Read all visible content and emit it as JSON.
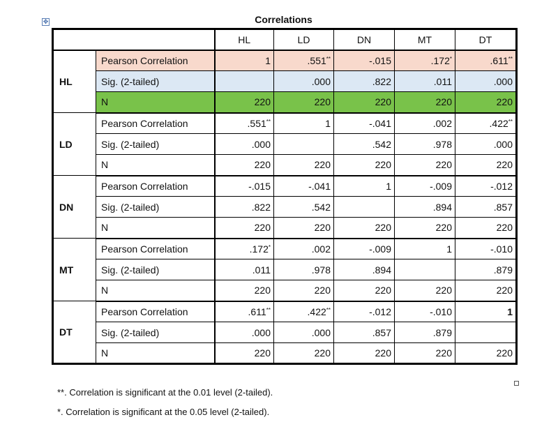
{
  "title": "Correlations",
  "move_handle_icon": "move-cross-icon",
  "columns": [
    "HL",
    "LD",
    "DN",
    "MT",
    "DT"
  ],
  "groups": [
    {
      "var": "HL",
      "rows": [
        {
          "stat": "Pearson Correlation",
          "cells": [
            {
              "v": "1"
            },
            {
              "v": ".551",
              "sup": "**"
            },
            {
              "v": "-.015"
            },
            {
              "v": ".172",
              "sup": "*"
            },
            {
              "v": ".611",
              "sup": "**"
            }
          ]
        },
        {
          "stat": "Sig. (2-tailed)",
          "cells": [
            {
              "v": ""
            },
            {
              "v": ".000"
            },
            {
              "v": ".822"
            },
            {
              "v": ".011"
            },
            {
              "v": ".000"
            }
          ]
        },
        {
          "stat": "N",
          "cells": [
            {
              "v": "220"
            },
            {
              "v": "220"
            },
            {
              "v": "220"
            },
            {
              "v": "220"
            },
            {
              "v": "220"
            }
          ]
        }
      ]
    },
    {
      "var": "LD",
      "rows": [
        {
          "stat": "Pearson Correlation",
          "cells": [
            {
              "v": ".551",
              "sup": "**"
            },
            {
              "v": "1"
            },
            {
              "v": "-.041"
            },
            {
              "v": ".002"
            },
            {
              "v": ".422",
              "sup": "**"
            }
          ]
        },
        {
          "stat": "Sig. (2-tailed)",
          "cells": [
            {
              "v": ".000"
            },
            {
              "v": ""
            },
            {
              "v": ".542"
            },
            {
              "v": ".978"
            },
            {
              "v": ".000"
            }
          ]
        },
        {
          "stat": "N",
          "cells": [
            {
              "v": "220"
            },
            {
              "v": "220"
            },
            {
              "v": "220"
            },
            {
              "v": "220"
            },
            {
              "v": "220"
            }
          ]
        }
      ]
    },
    {
      "var": "DN",
      "rows": [
        {
          "stat": "Pearson Correlation",
          "cells": [
            {
              "v": "-.015"
            },
            {
              "v": "-.041"
            },
            {
              "v": "1"
            },
            {
              "v": "-.009"
            },
            {
              "v": "-.012"
            }
          ]
        },
        {
          "stat": "Sig. (2-tailed)",
          "cells": [
            {
              "v": ".822"
            },
            {
              "v": ".542"
            },
            {
              "v": ""
            },
            {
              "v": ".894"
            },
            {
              "v": ".857"
            }
          ]
        },
        {
          "stat": "N",
          "cells": [
            {
              "v": "220"
            },
            {
              "v": "220"
            },
            {
              "v": "220"
            },
            {
              "v": "220"
            },
            {
              "v": "220"
            }
          ]
        }
      ]
    },
    {
      "var": "MT",
      "rows": [
        {
          "stat": "Pearson Correlation",
          "cells": [
            {
              "v": ".172",
              "sup": "*"
            },
            {
              "v": ".002"
            },
            {
              "v": "-.009"
            },
            {
              "v": "1"
            },
            {
              "v": "-.010"
            }
          ]
        },
        {
          "stat": "Sig. (2-tailed)",
          "cells": [
            {
              "v": ".011"
            },
            {
              "v": ".978"
            },
            {
              "v": ".894"
            },
            {
              "v": ""
            },
            {
              "v": ".879"
            }
          ]
        },
        {
          "stat": "N",
          "cells": [
            {
              "v": "220"
            },
            {
              "v": "220"
            },
            {
              "v": "220"
            },
            {
              "v": "220"
            },
            {
              "v": "220"
            }
          ]
        }
      ]
    },
    {
      "var": "DT",
      "rows": [
        {
          "stat": "Pearson Correlation",
          "cells": [
            {
              "v": ".611",
              "sup": "**"
            },
            {
              "v": ".422",
              "sup": "**"
            },
            {
              "v": "-.012"
            },
            {
              "v": "-.010"
            },
            {
              "v": "1",
              "bold": true
            }
          ]
        },
        {
          "stat": "Sig. (2-tailed)",
          "cells": [
            {
              "v": ".000"
            },
            {
              "v": ".000"
            },
            {
              "v": ".857"
            },
            {
              "v": ".879"
            },
            {
              "v": ""
            }
          ]
        },
        {
          "stat": "N",
          "cells": [
            {
              "v": "220"
            },
            {
              "v": "220"
            },
            {
              "v": "220"
            },
            {
              "v": "220"
            },
            {
              "v": "220"
            }
          ]
        }
      ]
    }
  ],
  "highlight_colors": {
    "pearson": "#f8d9cc",
    "sig": "#dce8f4",
    "n": "#79c24a"
  },
  "footnotes": [
    "**. Correlation is significant at the 0.01 level (2-tailed).",
    "*. Correlation is significant at the 0.05 level (2-tailed)."
  ]
}
